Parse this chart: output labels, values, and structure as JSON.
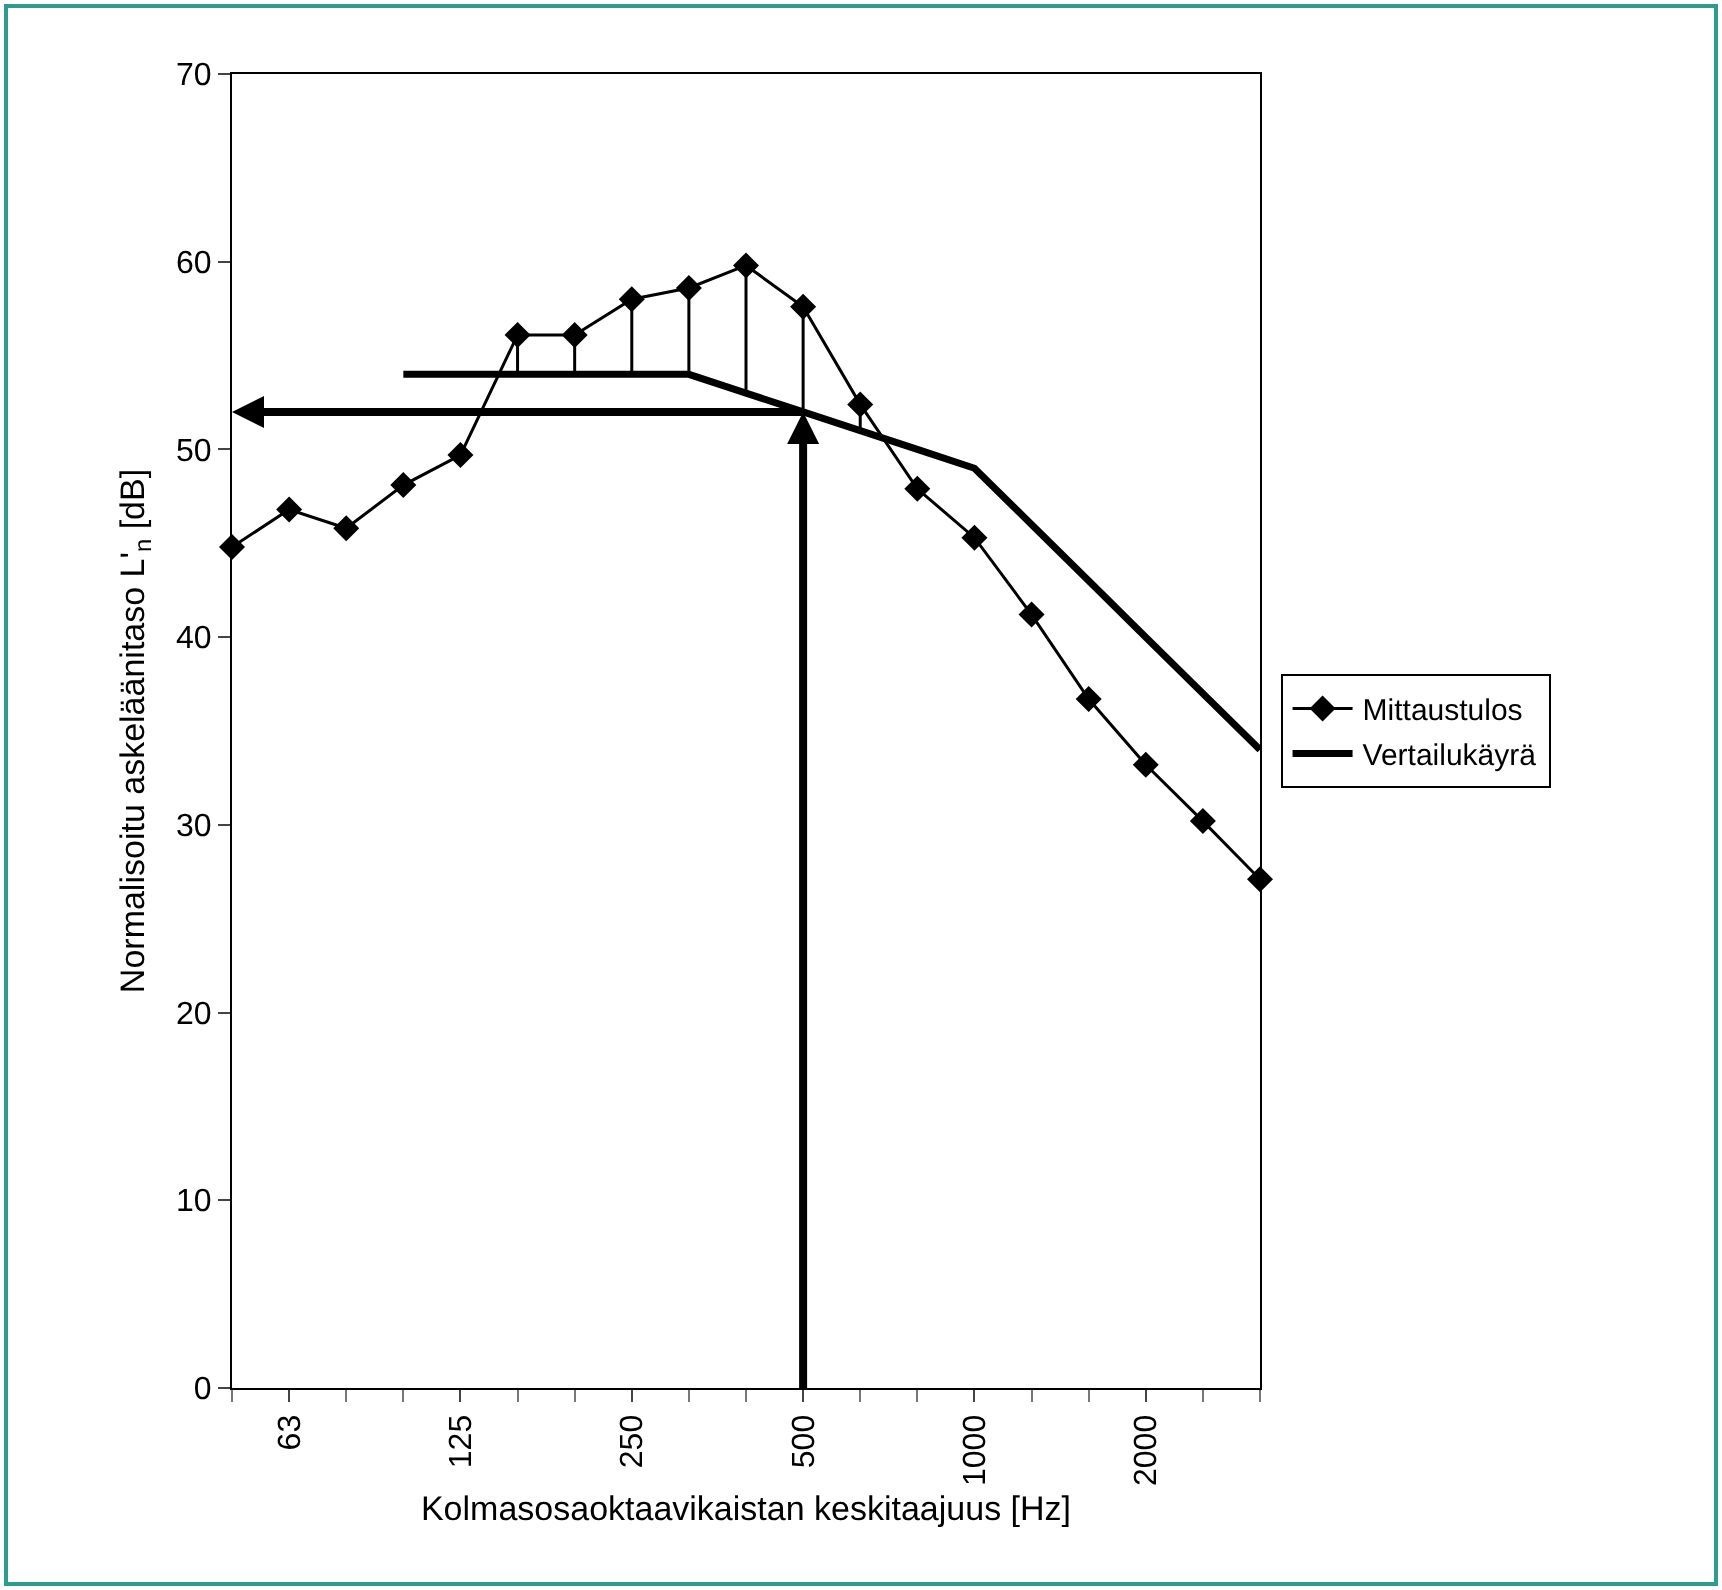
{
  "chart_data": {
    "type": "line",
    "xlabel": "Kolmasosaoktaavikaistan keskitaajuus [Hz]",
    "ylabel": "Normalisoitu askeläänitaso L'$_{n}$ [dB]",
    "categories": [
      null,
      "63",
      null,
      null,
      "125",
      null,
      null,
      "250",
      null,
      null,
      "500",
      null,
      null,
      "1000",
      null,
      null,
      "2000",
      null,
      null
    ],
    "ylim": [
      0,
      70
    ],
    "yticks": [
      0,
      10,
      20,
      30,
      40,
      50,
      60,
      70
    ],
    "grid": false,
    "legend": "right",
    "series": [
      {
        "name": "Mittaustulos",
        "color": "#000000",
        "marker": "diamond",
        "values": [
          44.8,
          46.8,
          45.8,
          48.1,
          49.7,
          56.1,
          56.1,
          58.0,
          58.6,
          59.8,
          57.6,
          52.4,
          47.9,
          45.3,
          41.2,
          36.7,
          33.2,
          30.2,
          27.1
        ]
      },
      {
        "name": "Vertailukäyrä",
        "color": "#000000",
        "marker": "none",
        "values": [
          null,
          null,
          null,
          54,
          54,
          54,
          54,
          54,
          54,
          53,
          52,
          51,
          50,
          49,
          46,
          43,
          40,
          37,
          34
        ]
      }
    ],
    "ref_lines": [
      {
        "axis": "y",
        "value": 52,
        "color": "#000000"
      },
      {
        "axis": "x",
        "value": "500",
        "color": "#000000"
      }
    ]
  }
}
